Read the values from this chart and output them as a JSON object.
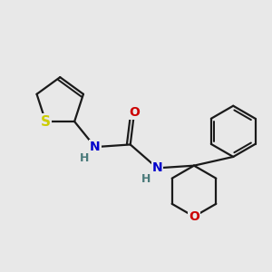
{
  "background_color": "#e8e8e8",
  "bond_color": "#1a1a1a",
  "bond_width": 1.6,
  "atom_colors": {
    "S": "#cccc00",
    "N": "#0000cc",
    "O": "#cc0000",
    "H": "#4a7a7a",
    "C": "#1a1a1a"
  },
  "font_size_atoms": 10,
  "xlim": [
    0.0,
    5.5
  ],
  "ylim": [
    0.2,
    4.8
  ]
}
